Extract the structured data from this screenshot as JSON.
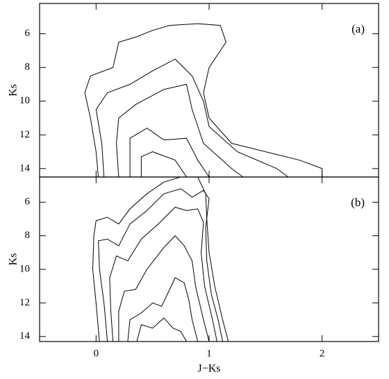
{
  "chart_data": [
    {
      "type": "contour",
      "annotation": "(a)",
      "ylabel": "Ks",
      "color": "#000000",
      "xlim": [
        -0.5,
        2.5
      ],
      "xticks": [
        0,
        1,
        2
      ],
      "ylim": [
        4.2,
        14.5
      ],
      "yticks": [
        6,
        8,
        10,
        12,
        14
      ],
      "y_inverted": true,
      "series": [
        {
          "x": [
            0.02,
            0.0,
            -0.05,
            -0.1,
            -0.05,
            0.15,
            0.2,
            0.35,
            0.5,
            0.65,
            0.9,
            1.1,
            1.15,
            1.0,
            0.95,
            1.0,
            1.2,
            1.5,
            1.8,
            2.0,
            2.0
          ],
          "values": [
            14.5,
            13,
            11,
            9.5,
            8.5,
            8,
            6.5,
            6.2,
            5.8,
            5.5,
            5.4,
            5.5,
            6.5,
            8,
            9.5,
            11,
            12.5,
            13,
            13.5,
            14,
            14.5
          ]
        },
        {
          "x": [
            0.07,
            0.05,
            0.0,
            0.1,
            0.3,
            0.5,
            0.7,
            0.85,
            0.95,
            1.0,
            1.25,
            1.6,
            1.7
          ],
          "values": [
            14.5,
            12.5,
            10.5,
            9.5,
            9,
            8.2,
            7.5,
            8.5,
            10,
            11.5,
            13,
            14,
            14.5
          ]
        },
        {
          "x": [
            0.2,
            0.18,
            0.2,
            0.35,
            0.6,
            0.8,
            0.85,
            0.95,
            1.2,
            1.3
          ],
          "values": [
            14.5,
            12.5,
            11,
            10.2,
            9.3,
            9,
            10.5,
            12.5,
            14,
            14.5
          ]
        },
        {
          "x": [
            0.3,
            0.3,
            0.45,
            0.6,
            0.8,
            0.9,
            1.0
          ],
          "values": [
            14.5,
            12.2,
            11.6,
            12.3,
            12.2,
            13.5,
            14.5
          ]
        },
        {
          "x": [
            0.4,
            0.4,
            0.5,
            0.7,
            0.8
          ],
          "values": [
            14.5,
            13.3,
            13,
            13.5,
            14.5
          ]
        }
      ]
    },
    {
      "type": "contour",
      "annotation": "(b)",
      "ylabel": "Ks",
      "xlabel": "J−Ks",
      "color": "#000000",
      "xlim": [
        -0.5,
        2.5
      ],
      "xticks": [
        0,
        1,
        2
      ],
      "ylim": [
        4.5,
        14.3
      ],
      "yticks": [
        6,
        8,
        10,
        12,
        14
      ],
      "y_inverted": true,
      "series": [
        {
          "x": [
            0.03,
            0.0,
            -0.03,
            -0.02,
            0.0,
            0.1,
            0.2,
            0.3,
            0.45,
            0.6,
            0.75,
            0.9,
            0.97,
            0.98,
            1.0,
            1.05,
            1.12,
            1.17
          ],
          "values": [
            14.3,
            12,
            10,
            8,
            7.1,
            6.9,
            7.3,
            6.4,
            5.5,
            4.8,
            4.5,
            4.5,
            5.5,
            7,
            9,
            11,
            13,
            14.3
          ]
        },
        {
          "x": [
            0.1,
            0.07,
            0.03,
            0.02,
            0.1,
            0.2,
            0.3,
            0.45,
            0.6,
            0.75,
            0.85,
            0.95,
            1.0,
            0.97,
            0.98,
            1.02,
            1.08,
            1.12
          ],
          "values": [
            14.3,
            12,
            10,
            8.3,
            8.2,
            8.6,
            7.3,
            6.5,
            5.5,
            5.2,
            5.7,
            5.3,
            5.8,
            7.5,
            9.5,
            11.5,
            13,
            14.3
          ]
        },
        {
          "x": [
            0.15,
            0.13,
            0.12,
            0.18,
            0.28,
            0.4,
            0.55,
            0.7,
            0.8,
            0.9,
            0.95,
            0.93,
            0.96,
            1.03,
            1.07
          ],
          "values": [
            14.3,
            12.5,
            10.5,
            9.2,
            9.5,
            8.2,
            7.3,
            6.3,
            6.5,
            6.4,
            7.2,
            9,
            11,
            13,
            14.3
          ]
        },
        {
          "x": [
            0.2,
            0.2,
            0.25,
            0.35,
            0.45,
            0.6,
            0.7,
            0.78,
            0.85,
            0.88,
            0.95,
            1.0
          ],
          "values": [
            14.3,
            12.5,
            11.3,
            11.2,
            10,
            8.7,
            8,
            8.6,
            9.5,
            11,
            13,
            14.3
          ]
        },
        {
          "x": [
            0.28,
            0.3,
            0.4,
            0.5,
            0.58,
            0.7,
            0.78,
            0.82,
            0.85,
            0.9
          ],
          "values": [
            14.3,
            13,
            12.6,
            12,
            12.2,
            10.5,
            10.8,
            11.8,
            13,
            14.3
          ]
        },
        {
          "x": [
            0.36,
            0.4,
            0.5,
            0.6,
            0.68,
            0.75,
            0.8
          ],
          "values": [
            14.3,
            13.3,
            13.5,
            12.9,
            13.5,
            13.7,
            14.3
          ]
        }
      ]
    }
  ]
}
